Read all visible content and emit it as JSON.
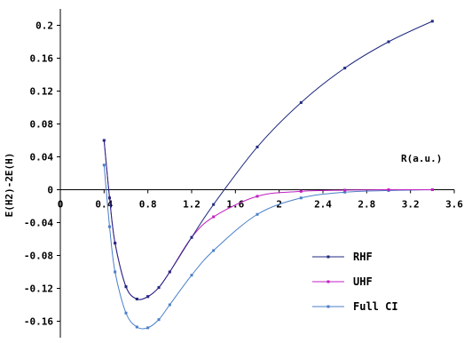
{
  "chart_data": {
    "type": "line",
    "title": "",
    "xlabel": "R(a.u.)",
    "ylabel": "E(H2)-2E(H)",
    "xlim": [
      0,
      3.6
    ],
    "ylim": [
      -0.18,
      0.22
    ],
    "x_ticks": [
      0,
      0.4,
      0.8,
      1.2,
      1.6,
      2,
      2.4,
      2.8,
      3.2,
      3.6
    ],
    "x_tick_labels": [
      "0",
      "0.4",
      "0.8",
      "1.2",
      "1.6",
      "2",
      "2.4",
      "2.8",
      "3.2",
      "3.6"
    ],
    "y_ticks": [
      0.2,
      0.16,
      0.12,
      0.08,
      0.04,
      0,
      -0.04,
      -0.08,
      -0.12,
      -0.16
    ],
    "y_tick_labels": [
      "0.2",
      "0.16",
      "0.12",
      "0.08",
      "0.04",
      "0",
      "-0.04",
      "-0.08",
      "-0.12",
      "-0.16"
    ],
    "grid": false,
    "legend_position": "bottom-right",
    "series": [
      {
        "name": "RHF",
        "color": "#1f2a80",
        "x": [
          0.4,
          0.45,
          0.5,
          0.6,
          0.7,
          0.8,
          0.9,
          1.0,
          1.2,
          1.4,
          1.8,
          2.2,
          2.6,
          3.0,
          3.4
        ],
        "y": [
          0.06,
          -0.01,
          -0.065,
          -0.118,
          -0.133,
          -0.13,
          -0.119,
          -0.1,
          -0.058,
          -0.018,
          0.052,
          0.106,
          0.148,
          0.18,
          0.205
        ]
      },
      {
        "name": "UHF",
        "color": "#c020c0",
        "x": [
          0.4,
          0.45,
          0.5,
          0.6,
          0.7,
          0.8,
          0.9,
          1.0,
          1.2,
          1.4,
          1.8,
          2.2,
          2.6,
          3.0,
          3.4
        ],
        "y": [
          0.06,
          -0.01,
          -0.065,
          -0.118,
          -0.133,
          -0.13,
          -0.119,
          -0.1,
          -0.058,
          -0.033,
          -0.008,
          -0.002,
          -0.0005,
          0.0,
          0.0
        ]
      },
      {
        "name": "Full CI",
        "color": "#4a7fc8",
        "x": [
          0.4,
          0.45,
          0.5,
          0.6,
          0.7,
          0.8,
          0.9,
          1.0,
          1.2,
          1.4,
          1.8,
          2.2,
          2.6,
          3.0,
          3.4
        ],
        "y": [
          0.03,
          -0.045,
          -0.1,
          -0.15,
          -0.167,
          -0.168,
          -0.158,
          -0.14,
          -0.104,
          -0.074,
          -0.03,
          -0.01,
          -0.003,
          -0.001,
          0.0
        ]
      }
    ]
  }
}
